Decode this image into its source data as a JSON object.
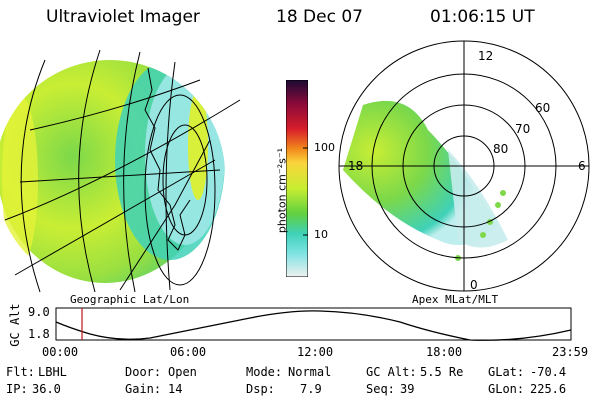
{
  "header": {
    "instrument": "Ultraviolet Imager",
    "date": "18 Dec 07",
    "time": "01:06:15 UT"
  },
  "left_panel": {
    "caption": "Geographic Lat/Lon"
  },
  "right_panel": {
    "caption": "Apex MLat/MLT",
    "mlt_labels": {
      "top": "12",
      "right": "6",
      "left": "18",
      "bottom": "0"
    },
    "lat_labels": [
      "60",
      "70",
      "80"
    ]
  },
  "colorbar": {
    "unit_label": "photon cm⁻²s⁻¹",
    "ticks": [
      "100",
      "10"
    ],
    "colors": [
      "#1a0a33",
      "#8a0a3a",
      "#d81e2a",
      "#f2891c",
      "#fad43c",
      "#c8ee32",
      "#60d040",
      "#3fd1b8",
      "#7fe3e3",
      "#f0f0f0"
    ]
  },
  "orbit_plot": {
    "ylabel": "GC Alt",
    "ytick_top": "9.0",
    "ytick_bottom": "1.8",
    "xticks": [
      "00:00",
      "06:00",
      "12:00",
      "18:00",
      "23:59"
    ],
    "marker_color": "#c01818"
  },
  "info": {
    "flt_label": "Flt:",
    "flt_value": "LBHL",
    "ip_label": "IP:",
    "ip_value": "36.0",
    "door_label": "Door:",
    "door_value": "Open",
    "gain_label": "Gain:",
    "gain_value": "14",
    "mode_label": "Mode:",
    "mode_value": "Normal",
    "dsp_label": "Dsp:",
    "dsp_value": "7.9",
    "gcalt_label": "GC Alt:",
    "gcalt_value": "5.5 Re",
    "seq_label": "Seq:",
    "seq_value": "39",
    "glat_label": "GLat:",
    "glat_value": "-70.4",
    "glon_label": "GLon:",
    "glon_value": "225.6"
  }
}
